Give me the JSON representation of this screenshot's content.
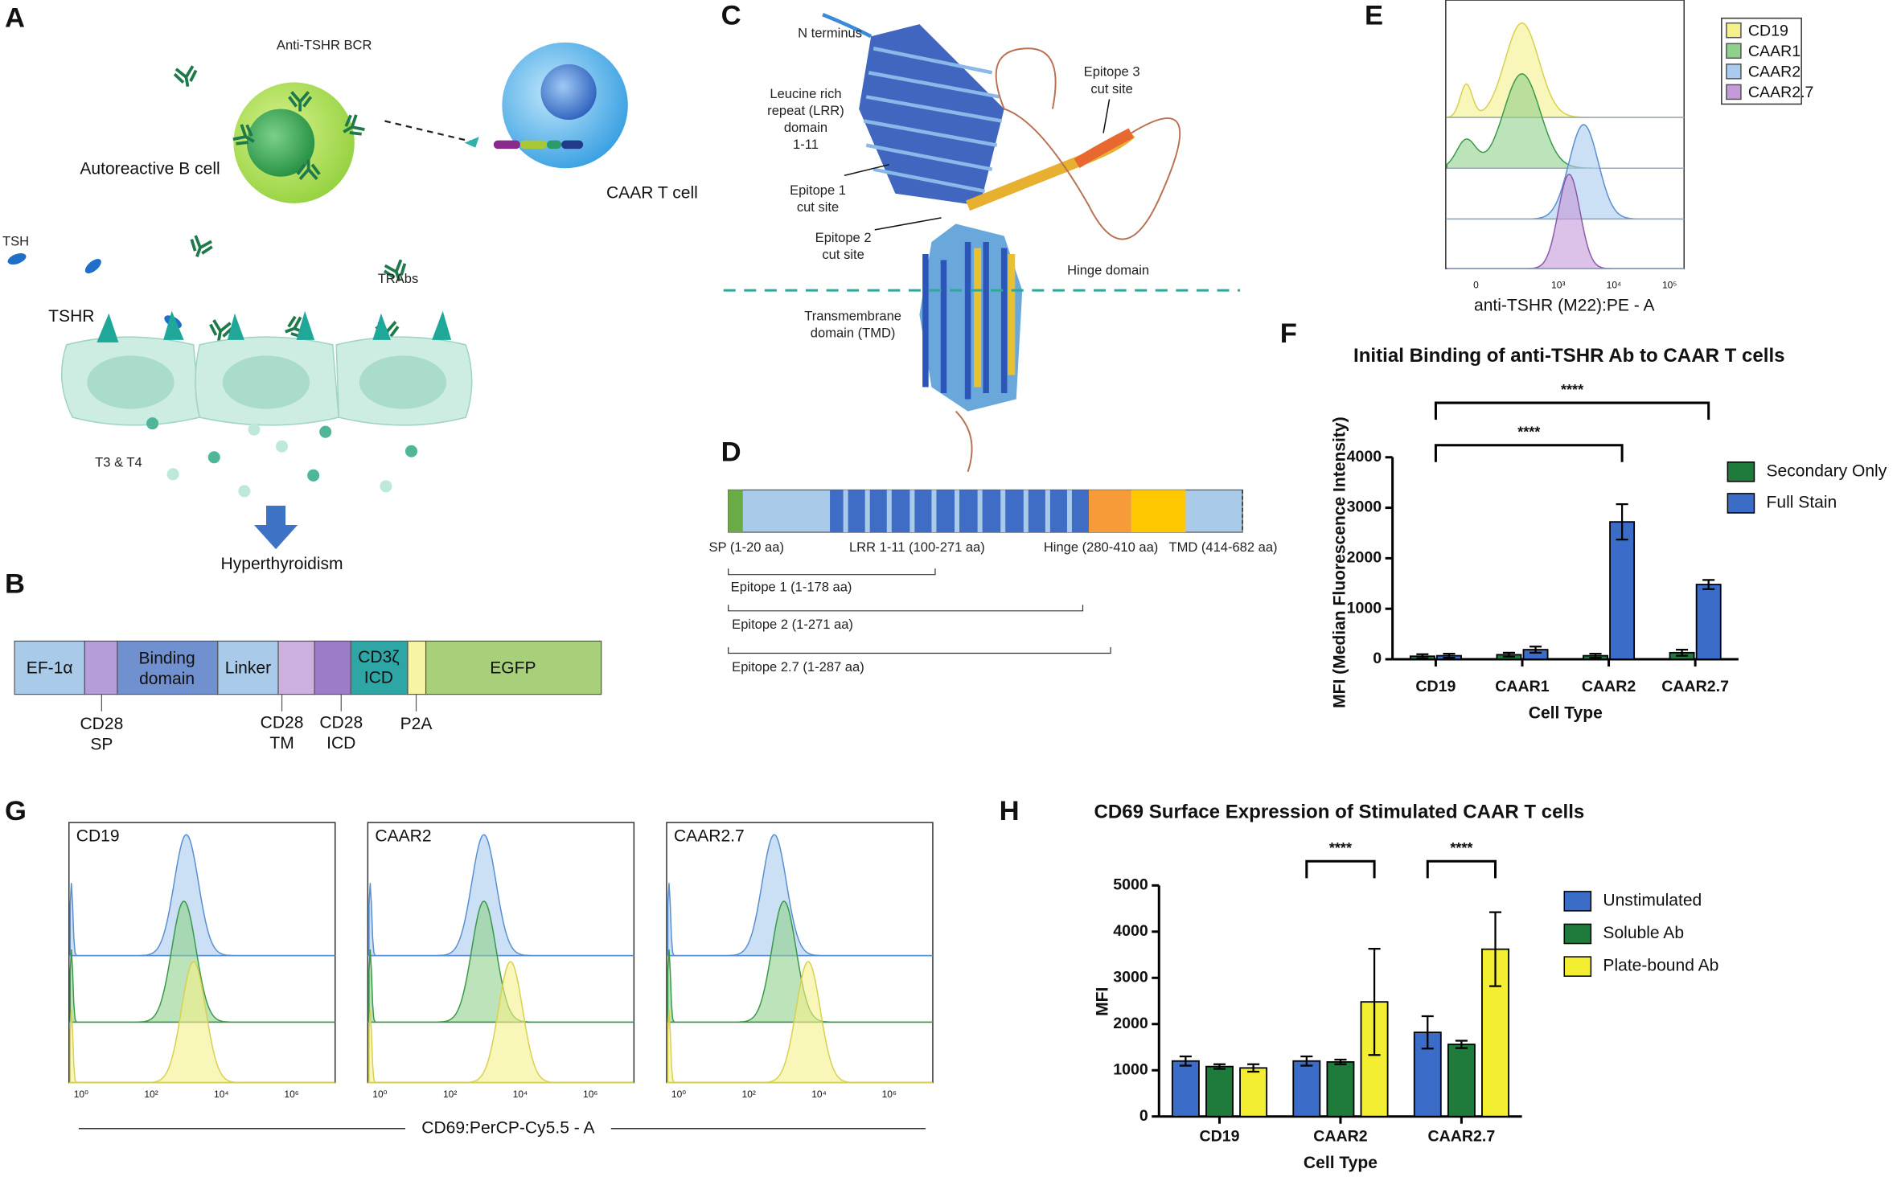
{
  "panels": {
    "A": {
      "letter": "A",
      "bcr": "Anti-TSHR BCR",
      "bcell": "Autoreactive B cell",
      "tcell": "CAAR T cell",
      "tsh": "TSH",
      "trabs": "TRAbs",
      "tshr": "TSHR",
      "t3t4": "T3 & T4",
      "outcome": "Hyperthyroidism"
    },
    "B": {
      "letter": "B",
      "segments": [
        "EF-1α",
        [
          "Binding",
          "domain"
        ],
        "Linker",
        [
          "CD3ζ",
          "ICD"
        ],
        "EGFP"
      ],
      "labels": [
        [
          "CD28",
          "SP"
        ],
        [
          "CD28",
          "TM"
        ],
        [
          "CD28",
          "ICD"
        ],
        "P2A"
      ]
    },
    "C": {
      "letter": "C",
      "nterm": "N terminus",
      "lrr": [
        "Leucine rich",
        "repeat (LRR)",
        "domain",
        "1-11"
      ],
      "ep1": [
        "Epitope 1",
        "cut site"
      ],
      "ep2": [
        "Epitope 2",
        "cut site"
      ],
      "ep3": [
        "Epitope 3",
        "cut site"
      ],
      "hinge": "Hinge domain",
      "tmd": [
        "Transmembrane",
        "domain (TMD)"
      ]
    },
    "D": {
      "letter": "D",
      "domains": [
        "SP (1-20 aa)",
        "LRR 1-11 (100-271 aa)",
        "Hinge (280-410 aa)",
        "TMD (414-682 aa)"
      ],
      "epitopes": [
        "Epitope 1 (1-178 aa)",
        "Epitope 2 (1-271 aa)",
        "Epitope 2.7 (1-287 aa)"
      ]
    },
    "E": {
      "letter": "E",
      "legend": [
        "CD19",
        "CAAR1",
        "CAAR2",
        "CAAR2.7"
      ],
      "xlabel": "anti-TSHR (M22):PE - A",
      "xticks": [
        "0",
        "10³",
        "10⁴",
        "10⁵"
      ]
    },
    "F": {
      "letter": "F"
    },
    "G": {
      "letter": "G",
      "titles": [
        "CD19",
        "CAAR2",
        "CAAR2.7"
      ],
      "xlabel": "CD69:PerCP-Cy5.5 - A",
      "xticks": [
        "10⁰",
        "10²",
        "10⁴",
        "10⁶"
      ]
    },
    "H": {
      "letter": "H"
    }
  },
  "chart_data": [
    {
      "type": "bar",
      "title": "Initial Binding of anti-TSHR Ab to CAAR T cells",
      "ylabel": "MFI (Median Fluorescence Intensity)",
      "xlabel": "Cell Type",
      "categories": [
        "CD19",
        "CAAR1",
        "CAAR2",
        "CAAR2.7"
      ],
      "series": [
        {
          "name": "Secondary Only",
          "color": "#1e7b3c",
          "values": [
            60,
            90,
            70,
            130
          ],
          "errors": [
            40,
            40,
            40,
            60
          ]
        },
        {
          "name": "Full Stain",
          "color": "#3a6cc8",
          "values": [
            70,
            190,
            2720,
            1480
          ],
          "errors": [
            40,
            60,
            350,
            90
          ]
        }
      ],
      "ylim": [
        0,
        4000
      ],
      "yticks": [
        0,
        1000,
        2000,
        3000,
        4000
      ],
      "annotations": [
        "****",
        "****"
      ],
      "legend": "right"
    },
    {
      "type": "bar",
      "title": "CD69 Surface Expression of Stimulated CAAR T cells",
      "ylabel": "MFI",
      "xlabel": "Cell Type",
      "categories": [
        "CD19",
        "CAAR2",
        "CAAR2.7"
      ],
      "series": [
        {
          "name": "Unstimulated",
          "color": "#3a6cc8",
          "values": [
            1200,
            1200,
            1820
          ],
          "errors": [
            100,
            100,
            350
          ]
        },
        {
          "name": "Soluble Ab",
          "color": "#1e7b3c",
          "values": [
            1080,
            1180,
            1560
          ],
          "errors": [
            50,
            50,
            80
          ]
        },
        {
          "name": "Plate-bound Ab",
          "color": "#f3ee32",
          "values": [
            1050,
            2480,
            3620
          ],
          "errors": [
            80,
            1150,
            800
          ]
        }
      ],
      "ylim": [
        0,
        5000
      ],
      "yticks": [
        0,
        1000,
        2000,
        3000,
        4000,
        5000
      ],
      "annotations": [
        "****",
        "****"
      ],
      "legend": "right"
    }
  ]
}
